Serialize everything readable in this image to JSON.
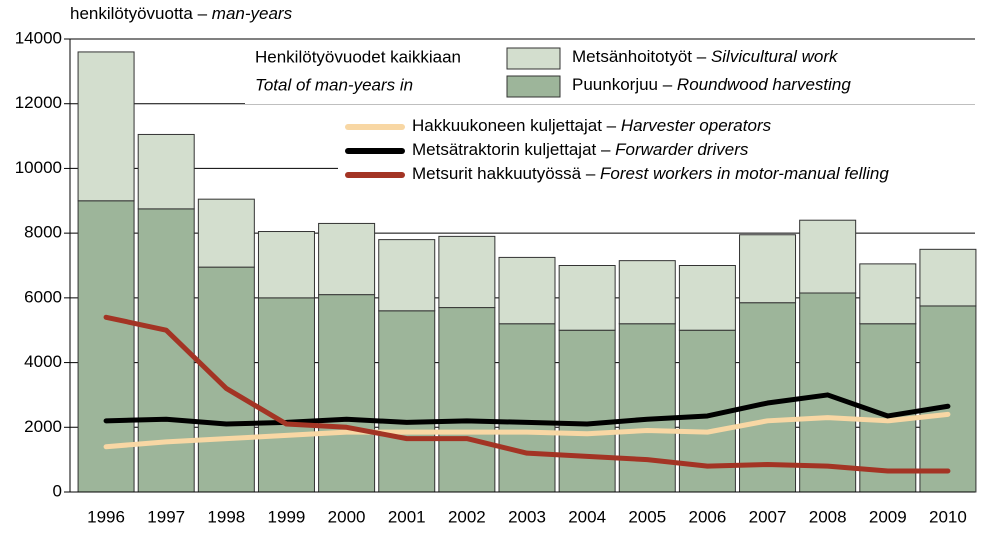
{
  "chart_data": {
    "type": "bar",
    "unit_fi": "henkilötyövuotta –",
    "unit_en": "man-years",
    "bar_legend_title": "Henkilötyövuodet kaikkiaan",
    "bar_legend_title_en": "Total of man-years in",
    "categories": [
      "1996",
      "1997",
      "1998",
      "1999",
      "2000",
      "2001",
      "2002",
      "2003",
      "2004",
      "2005",
      "2006",
      "2007",
      "2008",
      "2009",
      "2010"
    ],
    "series": [
      {
        "name": "Puunkorjuu –",
        "name_en": "Roundwood harvesting",
        "color": "#9db59a",
        "stack": true,
        "values": [
          9000,
          8750,
          6950,
          6000,
          6100,
          5600,
          5700,
          5200,
          5000,
          5200,
          5000,
          5850,
          6150,
          5200,
          5750
        ]
      },
      {
        "name": "Metsänhoitotyöt –",
        "name_en": "Silvicultural work",
        "color": "#d3dece",
        "stack": true,
        "values": [
          4600,
          2300,
          2100,
          2050,
          2200,
          2200,
          2200,
          2050,
          2000,
          1950,
          2000,
          2100,
          2250,
          1850,
          1750
        ]
      },
      {
        "name": "Hakkuukoneen kuljettajat –",
        "name_en": "Harvester operators",
        "color": "#f8d7a4",
        "line": true,
        "values": [
          1400,
          1550,
          1650,
          1750,
          1850,
          1850,
          1850,
          1850,
          1800,
          1900,
          1850,
          2200,
          2300,
          2200,
          2400
        ]
      },
      {
        "name": "Metsätraktorin kuljettajat –",
        "name_en": "Forwarder drivers",
        "color": "#000000",
        "line": true,
        "values": [
          2200,
          2250,
          2100,
          2150,
          2250,
          2150,
          2200,
          2150,
          2100,
          2250,
          2350,
          2750,
          3000,
          2350,
          2650
        ]
      },
      {
        "name": "Metsurit hakkuutyössä –",
        "name_en": "Forest workers in motor-manual felling",
        "color": "#a33424",
        "line": true,
        "values": [
          5400,
          5000,
          3200,
          2100,
          2000,
          1650,
          1650,
          1200,
          1100,
          1000,
          800,
          850,
          800,
          650,
          650
        ]
      }
    ],
    "ylim": [
      0,
      14000
    ],
    "yticks": [
      0,
      2000,
      4000,
      6000,
      8000,
      10000,
      12000,
      14000
    ],
    "grid": true
  }
}
